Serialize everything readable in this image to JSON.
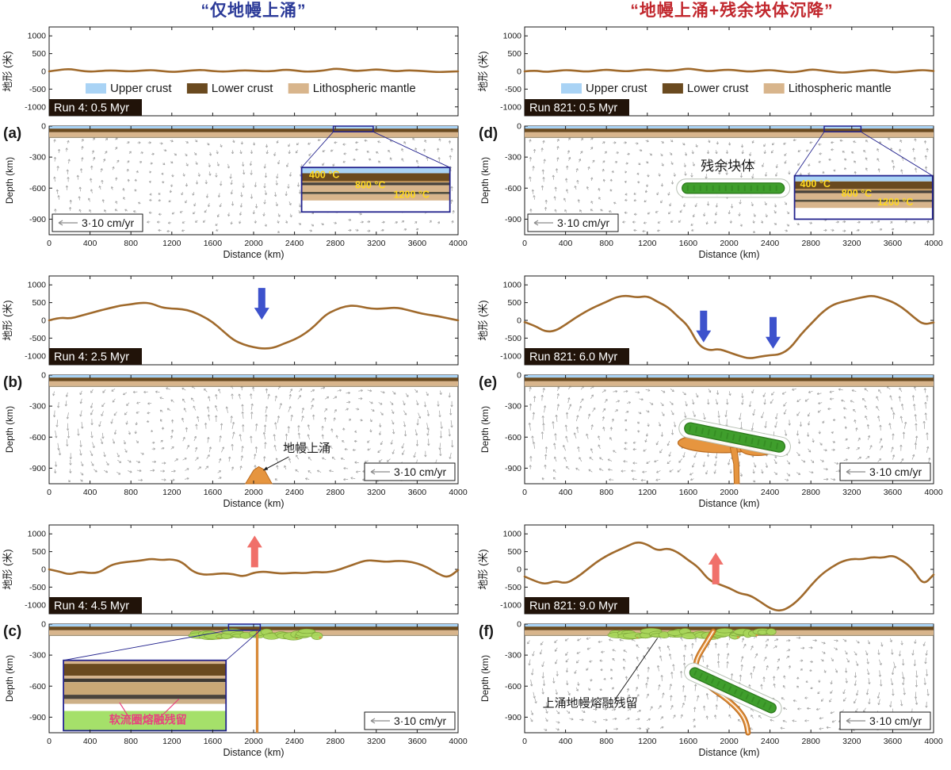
{
  "titles": {
    "left": {
      "text": "“仅地幔上涌”",
      "color": "#2b3a98"
    },
    "right": {
      "text": "“地幔上涌+残余块体沉降”",
      "color": "#c1272d"
    }
  },
  "legend": {
    "items": [
      {
        "label": "Upper crust",
        "color": "#a9d3f5"
      },
      {
        "label": "Lower crust",
        "color": "#6a4a1f"
      },
      {
        "label": "Lithospheric mantle",
        "color": "#d8b58c"
      }
    ]
  },
  "axis": {
    "topo_ylabel": "地形 (米)",
    "depth_ylabel": "Depth (km)",
    "xlabel": "Distance (km)",
    "topo_yticks": [
      1000,
      500,
      0,
      -500,
      -1000
    ],
    "depth_yticks": [
      0,
      -300,
      -600,
      -900
    ],
    "xticks": [
      0,
      400,
      800,
      1200,
      1600,
      2000,
      2400,
      2800,
      3200,
      3600,
      4000
    ],
    "x_range": [
      0,
      4000
    ],
    "topo_range_m": [
      -1250,
      1250
    ],
    "depth_range_km": [
      0,
      -1050
    ]
  },
  "scale_label": "3·10 cm/yr",
  "colors": {
    "topo_line": "#a06a2c",
    "upper_crust": "#a9d3f5",
    "lower_crust": "#6a4a1f",
    "lith_mantle": "#d8b58c",
    "strip_base": "#8a7a5a",
    "run_bg": "#211309",
    "run_fg": "#ffffff",
    "flow_arrow": "#9b9b9b",
    "green_block": "#3f9e2c",
    "green_edge": "#2d7a1d",
    "melt_green": "#a8d65a",
    "melt_edge": "#7aa338",
    "orange": "#e6953f",
    "orange_edge": "#b96a1e",
    "blue_arrow": "#3d52cc",
    "red_arrow": "#f0706a",
    "inset_border": "#23238e",
    "temp_label": "#ffd81f",
    "melt_label": "#e8417f",
    "axis_text": "#1a1a1a"
  },
  "chart_data": {
    "type": "line",
    "x_step_km": 100,
    "panels": [
      {
        "letter": "a",
        "run_label": "Run 4: 0.5 Myr",
        "legend": true,
        "scale_pos": "bl",
        "topo": [
          0,
          40,
          70,
          20,
          -10,
          10,
          30,
          10,
          0,
          20,
          40,
          10,
          -20,
          0,
          30,
          40,
          10,
          -10,
          10,
          30,
          20,
          0,
          10,
          50,
          30,
          -10,
          0,
          30,
          80,
          50,
          10,
          30,
          60,
          30,
          0,
          30,
          20,
          0,
          -20,
          -10,
          0
        ],
        "flow": {
          "sign": 1,
          "cx": 0.5,
          "amp": 0.55
        },
        "inset": {
          "kind": "temps",
          "box": [
            2470,
            -400,
            3920,
            -830
          ],
          "src": [
            2780,
            3170,
            -55
          ],
          "labels": [
            {
              "t": "400 °C",
              "fx": 0.05,
              "fz": 0.24
            },
            {
              "t": "800 °C",
              "fx": 0.36,
              "fz": 0.47
            },
            {
              "t": "1200 °C",
              "fx": 0.62,
              "fz": 0.68
            }
          ]
        },
        "features": [],
        "annotations": [],
        "topo_arrows": []
      },
      {
        "letter": "b",
        "run_label": "Run 4: 2.5 Myr",
        "legend": false,
        "scale_pos": "br",
        "topo": [
          0,
          80,
          50,
          120,
          200,
          280,
          350,
          420,
          450,
          500,
          480,
          360,
          330,
          320,
          250,
          120,
          -50,
          -300,
          -550,
          -680,
          -760,
          -800,
          -770,
          -650,
          -540,
          -380,
          -150,
          150,
          300,
          400,
          420,
          350,
          320,
          340,
          360,
          300,
          220,
          160,
          120,
          60,
          0
        ],
        "flow": {
          "sign": -1,
          "cx": 0.5,
          "amp": 1.0
        },
        "features": [
          {
            "type": "poly",
            "points": [
              [
                1920,
                -1050
              ],
              [
                2000,
                -920
              ],
              [
                2050,
                -885
              ],
              [
                2105,
                -915
              ],
              [
                2180,
                -1050
              ]
            ],
            "fill": "orange"
          }
        ],
        "annotations": [
          {
            "text": "地幔上涌",
            "x": 2520,
            "z": -745,
            "size": 15,
            "line": [
              2345,
              -790,
              2095,
              -920
            ],
            "arrow": true
          }
        ],
        "topo_arrows": [
          {
            "x": 2080,
            "tip": 20,
            "dir": "down",
            "color": "blue"
          }
        ]
      },
      {
        "letter": "c",
        "run_label": "Run 4: 4.5 Myr",
        "legend": false,
        "scale_pos": "br",
        "topo": [
          0,
          -60,
          -150,
          -60,
          -110,
          -80,
          120,
          190,
          220,
          250,
          300,
          260,
          290,
          210,
          -60,
          -150,
          -140,
          -110,
          -130,
          -210,
          -90,
          -60,
          -100,
          -120,
          -90,
          -110,
          -70,
          -90,
          -40,
          60,
          160,
          260,
          240,
          210,
          240,
          230,
          170,
          60,
          -120,
          -240,
          -20
        ],
        "flow": {
          "sign": 1,
          "cx": 0.5,
          "amp": 0
        },
        "features": [
          {
            "type": "melt-cluster",
            "x1": 1430,
            "x2": 2580,
            "z": -95,
            "n": 26
          },
          {
            "type": "vline",
            "x": 2035,
            "z1": -60,
            "z2": -1050
          }
        ],
        "inset": {
          "kind": "melt",
          "box": [
            140,
            -350,
            1730,
            -1030
          ],
          "src": [
            1755,
            2065,
            -60
          ],
          "label": {
            "t": "软流圈熔融残留",
            "fx": 0.52,
            "fz": 0.9
          },
          "lines": [
            [
              0.4,
              0.8,
              0.345,
              0.6
            ],
            [
              0.6,
              0.8,
              0.71,
              0.55
            ]
          ]
        },
        "annotations": [],
        "topo_arrows": [
          {
            "x": 2010,
            "tip": 950,
            "dir": "up",
            "color": "red"
          }
        ]
      },
      {
        "letter": "d",
        "run_label": "Run 821: 0.5 Myr",
        "legend": true,
        "scale_pos": "bl",
        "topo": [
          0,
          30,
          -20,
          10,
          40,
          20,
          -10,
          20,
          50,
          20,
          0,
          30,
          60,
          30,
          10,
          40,
          80,
          40,
          0,
          30,
          50,
          20,
          -10,
          20,
          40,
          10,
          -30,
          0,
          60,
          30,
          -10,
          -40,
          -20,
          10,
          40,
          10,
          -30,
          -10,
          20,
          40,
          10
        ],
        "flow": {
          "sign": 1,
          "cx": 0.5,
          "amp": 0.55
        },
        "features": [
          {
            "type": "pill",
            "x1": 1540,
            "z1": -600,
            "x2": 2540,
            "z2": -600,
            "r": 50
          }
        ],
        "annotations": [
          {
            "text": "残余块体",
            "x": 1985,
            "z": -430,
            "size": 17
          }
        ],
        "inset": {
          "kind": "temps",
          "box": [
            2640,
            -480,
            3990,
            -900
          ],
          "src": [
            2930,
            3290,
            -55
          ],
          "labels": [
            {
              "t": "400 °C",
              "fx": 0.04,
              "fz": 0.26
            },
            {
              "t": "800 °C",
              "fx": 0.34,
              "fz": 0.48
            },
            {
              "t": "1200 °C",
              "fx": 0.6,
              "fz": 0.68
            }
          ]
        },
        "topo_arrows": []
      },
      {
        "letter": "e",
        "run_label": "Run 821: 6.0 Myr",
        "legend": false,
        "scale_pos": "br",
        "topo": [
          -50,
          -150,
          -320,
          -300,
          -120,
          80,
          250,
          400,
          520,
          660,
          700,
          640,
          690,
          520,
          380,
          100,
          -150,
          -700,
          -850,
          -800,
          -900,
          -1000,
          -1080,
          -1020,
          -980,
          -960,
          -780,
          -400,
          -100,
          200,
          420,
          520,
          580,
          650,
          700,
          620,
          520,
          350,
          100,
          -120,
          -60
        ],
        "flow": {
          "sign": 1,
          "cx": 0.51,
          "amp": 1.05
        },
        "features": [
          {
            "type": "blob",
            "cx": 1930,
            "cz": -655,
            "rx": 430,
            "rz": 95
          },
          {
            "type": "blob",
            "cx": 2280,
            "cz": -715,
            "rx": 170,
            "rz": 62
          },
          {
            "type": "poly",
            "points": [
              [
                2010,
                -700
              ],
              [
                2045,
                -860
              ],
              [
                2050,
                -1050
              ],
              [
                2100,
                -1050
              ],
              [
                2095,
                -860
              ],
              [
                2075,
                -700
              ]
            ],
            "fill": "orange"
          },
          {
            "type": "pill",
            "x1": 1565,
            "z1": -505,
            "x2": 2545,
            "z2": -700,
            "r": 55
          }
        ],
        "annotations": [],
        "topo_arrows": [
          {
            "x": 1750,
            "tip": -620,
            "dir": "down",
            "color": "blue"
          },
          {
            "x": 2430,
            "tip": -800,
            "dir": "down",
            "color": "blue"
          }
        ]
      },
      {
        "letter": "f",
        "run_label": "Run 821: 9.0 Myr",
        "legend": false,
        "scale_pos": "br",
        "topo": [
          -200,
          -330,
          -420,
          -320,
          -400,
          -250,
          -30,
          200,
          380,
          520,
          650,
          780,
          700,
          520,
          600,
          480,
          260,
          60,
          -300,
          -420,
          -520,
          -680,
          -720,
          -900,
          -1100,
          -1180,
          -1050,
          -800,
          -450,
          -150,
          60,
          220,
          300,
          280,
          350,
          320,
          400,
          240,
          0,
          -450,
          -150
        ],
        "flow": {
          "sign": -1,
          "cx": 0.44,
          "amp": 0.95
        },
        "features": [
          {
            "type": "melt-cluster",
            "x1": 880,
            "x2": 2380,
            "z": -90,
            "n": 34
          },
          {
            "type": "conduit",
            "pts": [
              [
                1845,
                -70
              ],
              [
                1765,
                -200
              ],
              [
                1685,
                -330
              ],
              [
                1668,
                -430
              ],
              [
                1725,
                -545
              ],
              [
                1865,
                -645
              ],
              [
                2005,
                -745
              ],
              [
                2125,
                -865
              ],
              [
                2172,
                -965
              ],
              [
                2185,
                -1050
              ]
            ]
          },
          {
            "type": "pill",
            "x1": 1620,
            "z1": -450,
            "x2": 2455,
            "z2": -830,
            "r": 48
          }
        ],
        "annotations": [
          {
            "text": "上涌地幔熔融残留",
            "x": 175,
            "z": -800,
            "size": 15,
            "anchor": "start",
            "line": [
              880,
              -735,
              1300,
              -135
            ]
          }
        ],
        "topo_arrows": [
          {
            "x": 1870,
            "tip": 470,
            "dir": "up",
            "color": "red"
          }
        ]
      }
    ]
  }
}
